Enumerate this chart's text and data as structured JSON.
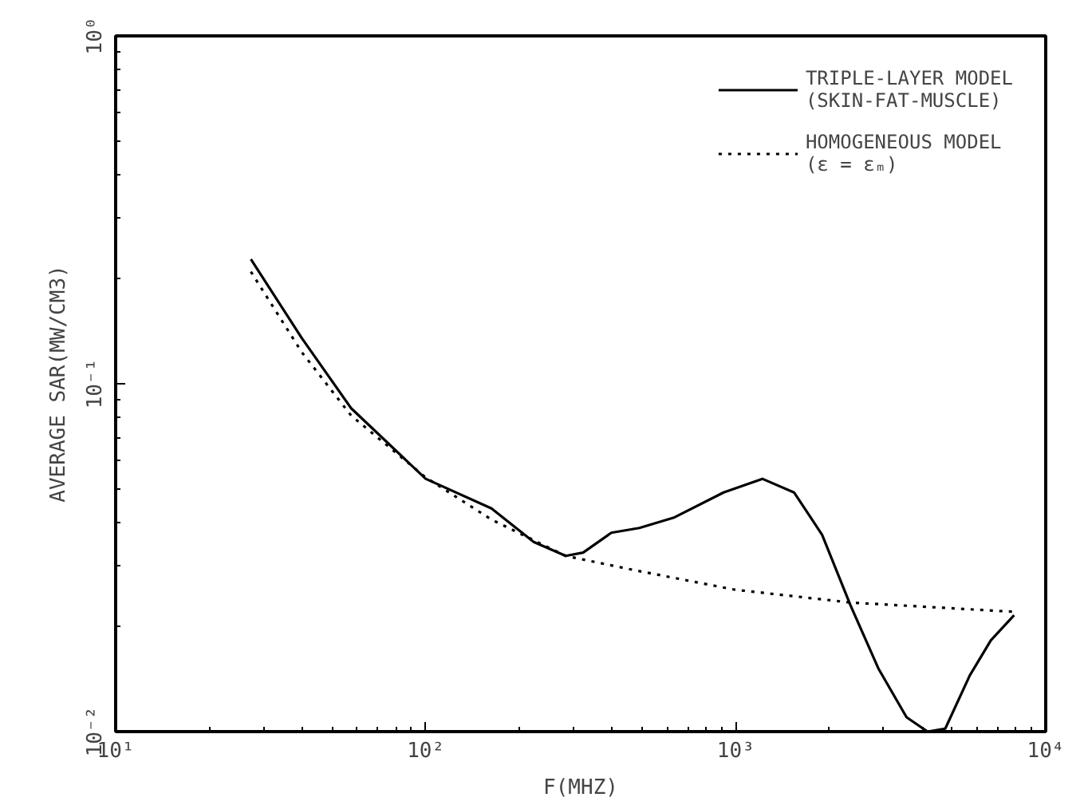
{
  "chart_data": {
    "type": "line",
    "xlabel": "F(MHZ)",
    "ylabel": "AVERAGE SAR(MW/CM3)",
    "log": "xy",
    "xlim": [
      10,
      10000
    ],
    "ylim": [
      0.01,
      1
    ],
    "xticks": [
      {
        "value": 10,
        "label": "10¹"
      },
      {
        "value": 100,
        "label": "10²"
      },
      {
        "value": 1000,
        "label": "10³"
      },
      {
        "value": 10000,
        "label": "10⁴"
      }
    ],
    "yticks": [
      {
        "value": 0.01,
        "label": "10⁻²"
      },
      {
        "value": 0.1,
        "label": "10⁻¹"
      },
      {
        "value": 1,
        "label": "10⁰"
      }
    ],
    "grid": false,
    "legend": "top right",
    "marker": "none",
    "series": [
      {
        "name": "TRIPLE-LAYER MODEL\n(SKIN-FAT-MUSCLE)",
        "color": "#000000",
        "line_style": "solid",
        "x": [
          27.3,
          39.9,
          57.5,
          100,
          163,
          223,
          283,
          322,
          397,
          489,
          635,
          914,
          1219,
          1542,
          1900,
          2344,
          2884,
          3557,
          4159,
          4742,
          5689,
          6652,
          7907
        ],
        "values": [
          0.228,
          0.135,
          0.085,
          0.0533,
          0.0438,
          0.0351,
          0.032,
          0.0327,
          0.0373,
          0.0385,
          0.0413,
          0.0487,
          0.0533,
          0.0487,
          0.0368,
          0.0231,
          0.0152,
          0.011,
          0.01,
          0.0102,
          0.0145,
          0.0183,
          0.0216
        ]
      },
      {
        "name": "HOMOGENEOUS MODEL\n(ε = εₘ)",
        "color": "#000000",
        "line_style": "dotted",
        "x": [
          27.3,
          39.9,
          57.5,
          100,
          163,
          283,
          464,
          989,
          2344,
          7907
        ],
        "values": [
          0.21,
          0.123,
          0.081,
          0.0538,
          0.0407,
          0.032,
          0.0292,
          0.0256,
          0.0235,
          0.0221
        ]
      }
    ]
  }
}
